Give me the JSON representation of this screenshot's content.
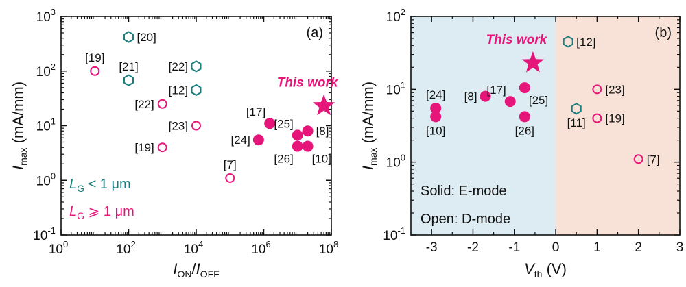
{
  "colors": {
    "pink": "#e6157a",
    "teal": "#1c7f7f",
    "region_e": "#dcecf2",
    "region_d": "#f8e1d6",
    "axis": "#111111"
  },
  "chart_data": [
    {
      "panel": "(a)",
      "type": "scatter",
      "x_scale": "log",
      "y_scale": "log",
      "xlim": [
        1,
        100000000
      ],
      "ylim": [
        0.1,
        1000
      ],
      "xlabel_main": "I",
      "xlabel_sub": "ON",
      "xlabel_sep": "/",
      "xlabel_main2": "I",
      "xlabel_sub2": "OFF",
      "ylabel_main": "I",
      "ylabel_sub": "max",
      "ylabel_unit": " (mA/mm)",
      "x_ticks": [
        {
          "value": 1,
          "base": "10",
          "exp": "0"
        },
        {
          "value": 100,
          "base": "10",
          "exp": "2"
        },
        {
          "value": 10000,
          "base": "10",
          "exp": "4"
        },
        {
          "value": 1000000,
          "base": "10",
          "exp": "6"
        },
        {
          "value": 100000000,
          "base": "10",
          "exp": "8"
        }
      ],
      "y_ticks": [
        {
          "value": 0.1,
          "base": "10",
          "exp": "-1"
        },
        {
          "value": 1,
          "base": "10",
          "exp": "0"
        },
        {
          "value": 10,
          "base": "10",
          "exp": "1"
        },
        {
          "value": 100,
          "base": "10",
          "exp": "2"
        },
        {
          "value": 1000,
          "base": "10",
          "exp": "3"
        }
      ],
      "legend": [
        {
          "main": "L",
          "sub": "G",
          "text": " < 1 μm",
          "color": "#1c7f7f"
        },
        {
          "main": "L",
          "sub": "G",
          "text": " ⩾ 1 μm",
          "color": "#e6157a"
        }
      ],
      "this_work": {
        "label": "This work",
        "x": 60000000,
        "y": 23
      },
      "points": [
        {
          "x": 100,
          "y": 420,
          "marker": "hexagon",
          "filled": false,
          "color": "#1c7f7f",
          "label": "[20]",
          "lpos": "right"
        },
        {
          "x": 100,
          "y": 68,
          "marker": "hexagon",
          "filled": false,
          "color": "#1c7f7f",
          "label": "[21]",
          "lpos": "above"
        },
        {
          "x": 10000,
          "y": 122,
          "marker": "hexagon",
          "filled": false,
          "color": "#1c7f7f",
          "label": "[22]",
          "lpos": "left"
        },
        {
          "x": 10000,
          "y": 45,
          "marker": "hexagon",
          "filled": false,
          "color": "#1c7f7f",
          "label": "[12]",
          "lpos": "left"
        },
        {
          "x": 10,
          "y": 100,
          "marker": "circle",
          "filled": false,
          "color": "#e6157a",
          "label": "[19]",
          "lpos": "above"
        },
        {
          "x": 1000,
          "y": 25,
          "marker": "circle",
          "filled": false,
          "color": "#e6157a",
          "label": "[22]",
          "lpos": "left"
        },
        {
          "x": 10000,
          "y": 10,
          "marker": "circle",
          "filled": false,
          "color": "#e6157a",
          "label": "[23]",
          "lpos": "left"
        },
        {
          "x": 1000,
          "y": 4,
          "marker": "circle",
          "filled": false,
          "color": "#e6157a",
          "label": "[19]",
          "lpos": "left"
        },
        {
          "x": 100000,
          "y": 1.1,
          "marker": "circle",
          "filled": false,
          "color": "#e6157a",
          "label": "[7]",
          "lpos": "above"
        },
        {
          "x": 700000,
          "y": 5.5,
          "marker": "circle",
          "filled": true,
          "color": "#e6157a",
          "label": "[24]",
          "lpos": "left"
        },
        {
          "x": 1500000,
          "y": 11,
          "marker": "circle",
          "filled": true,
          "color": "#e6157a",
          "label": "[17]",
          "lpos": "aboveleft"
        },
        {
          "x": 10000000,
          "y": 6.7,
          "marker": "circle",
          "filled": true,
          "color": "#e6157a",
          "label": "[25]",
          "lpos": "aboveleft"
        },
        {
          "x": 20000000,
          "y": 8,
          "marker": "circle",
          "filled": true,
          "color": "#e6157a",
          "label": "[8]",
          "lpos": "right"
        },
        {
          "x": 10000000,
          "y": 4.2,
          "marker": "circle",
          "filled": true,
          "color": "#e6157a",
          "label": "[26]",
          "lpos": "belowleft"
        },
        {
          "x": 20000000,
          "y": 4.2,
          "marker": "circle",
          "filled": true,
          "color": "#e6157a",
          "label": "[10]",
          "lpos": "belowright"
        }
      ]
    },
    {
      "panel": "(b)",
      "type": "scatter",
      "x_scale": "linear",
      "y_scale": "log",
      "xlim": [
        -3.5,
        3
      ],
      "ylim": [
        0.1,
        100
      ],
      "xlabel_main": "V",
      "xlabel_sub": "th",
      "xlabel_unit": " (V)",
      "ylabel_main": "I",
      "ylabel_sub": "max",
      "ylabel_unit": " (mA/mm)",
      "x_ticks": [
        "-3",
        "-2",
        "-1",
        "0",
        "1",
        "2",
        "3"
      ],
      "y_ticks": [
        {
          "value": 0.1,
          "base": "10",
          "exp": "-1"
        },
        {
          "value": 1,
          "base": "10",
          "exp": "0"
        },
        {
          "value": 10,
          "base": "10",
          "exp": "1"
        },
        {
          "value": 100,
          "base": "10",
          "exp": "2"
        }
      ],
      "regions": [
        {
          "from": -3.5,
          "to": 0,
          "color": "#dcecf2"
        },
        {
          "from": 0,
          "to": 3,
          "color": "#f8e1d6"
        }
      ],
      "notes": [
        "Solid: E-mode",
        "Open: D-mode"
      ],
      "this_work": {
        "label": "This work",
        "x": -0.55,
        "y": 23
      },
      "points": [
        {
          "x": -2.9,
          "y": 5.5,
          "marker": "circle",
          "filled": true,
          "color": "#e6157a",
          "label": "[24]",
          "lpos": "above"
        },
        {
          "x": -2.9,
          "y": 4.2,
          "marker": "circle",
          "filled": true,
          "color": "#e6157a",
          "label": "[10]",
          "lpos": "below"
        },
        {
          "x": -1.7,
          "y": 8,
          "marker": "circle",
          "filled": true,
          "color": "#e6157a",
          "label": "[8]",
          "lpos": "left"
        },
        {
          "x": -1.1,
          "y": 6.8,
          "marker": "circle",
          "filled": true,
          "color": "#e6157a",
          "label": "[17]",
          "lpos": "aboveleft"
        },
        {
          "x": -0.75,
          "y": 10.5,
          "marker": "circle",
          "filled": true,
          "color": "#e6157a",
          "label": "[25]",
          "lpos": "belowright"
        },
        {
          "x": -0.75,
          "y": 4.2,
          "marker": "circle",
          "filled": true,
          "color": "#e6157a",
          "label": "[26]",
          "lpos": "below"
        },
        {
          "x": 0.3,
          "y": 45,
          "marker": "hexagon",
          "filled": false,
          "color": "#1c7f7f",
          "label": "[12]",
          "lpos": "right"
        },
        {
          "x": 0.5,
          "y": 5.4,
          "marker": "hexagon",
          "filled": false,
          "color": "#1c7f7f",
          "label": "[11]",
          "lpos": "below"
        },
        {
          "x": 1,
          "y": 10,
          "marker": "circle",
          "filled": false,
          "color": "#e6157a",
          "label": "[23]",
          "lpos": "right"
        },
        {
          "x": 1,
          "y": 4,
          "marker": "circle",
          "filled": false,
          "color": "#e6157a",
          "label": "[19]",
          "lpos": "right"
        },
        {
          "x": 2,
          "y": 1.1,
          "marker": "circle",
          "filled": false,
          "color": "#e6157a",
          "label": "[7]",
          "lpos": "right"
        }
      ]
    }
  ]
}
